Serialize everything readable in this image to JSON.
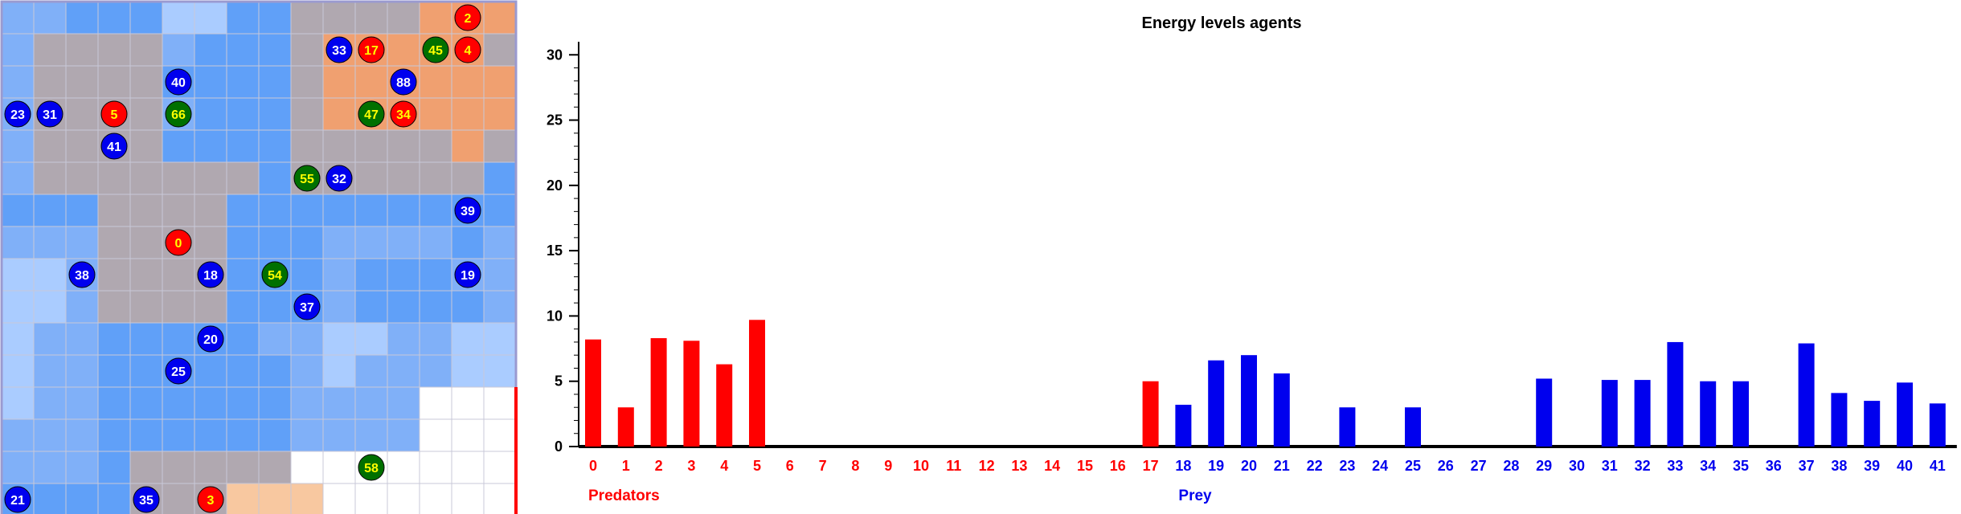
{
  "grid": {
    "rows": 16,
    "cols": 16,
    "colors": {
      "w": "#ffffff",
      "l": "#aaccff",
      "m": "#80b0f8",
      "b": "#60a0f8",
      "g": "#b0a8b0",
      "o": "#f0a070",
      "p": "#f8c8a0"
    },
    "cells": [
      "mmbbbllbbggggooo",
      "mggggmbbbgooooog",
      "mggggbbbbgoooooo",
      "mggggmbbbgoooooo",
      "mggggbbbbgggggog",
      "mgggggggbggggggb",
      "bbbggggbbbbbbbbb",
      "mmmggggbbbmmmmbm",
      "llmggggbbbmbbbmm",
      "llmggggbbbmbbbbm",
      "lmmbbbbbmmllmmll",
      "lmmbbbbbbmlmmmll",
      "lmmbbbbbbmmmmwww",
      "mmmbbbbbbmmmmwww",
      "mmmbgggggwwwwwww",
      "bbbbgggpppwwwwww"
    ],
    "highlight_color": "#ff0000",
    "agents": [
      {
        "id": "2",
        "type": "predator",
        "col": 14,
        "row": 0
      },
      {
        "id": "33",
        "type": "prey",
        "col": 10,
        "row": 1
      },
      {
        "id": "17",
        "type": "predator",
        "col": 11,
        "row": 1
      },
      {
        "id": "45",
        "type": "other",
        "col": 13,
        "row": 1
      },
      {
        "id": "4",
        "type": "predator",
        "col": 14,
        "row": 1
      },
      {
        "id": "40",
        "type": "prey",
        "col": 5,
        "row": 2
      },
      {
        "id": "88",
        "type": "prey",
        "col": 12,
        "row": 2
      },
      {
        "id": "23",
        "type": "prey",
        "col": 0,
        "row": 3
      },
      {
        "id": "31",
        "type": "prey",
        "col": 1,
        "row": 3
      },
      {
        "id": "5",
        "type": "predator",
        "col": 3,
        "row": 3
      },
      {
        "id": "66",
        "type": "other",
        "col": 5,
        "row": 3
      },
      {
        "id": "47",
        "type": "other",
        "col": 11,
        "row": 3
      },
      {
        "id": "34",
        "type": "predator",
        "col": 12,
        "row": 3
      },
      {
        "id": "41",
        "type": "prey",
        "col": 3,
        "row": 4
      },
      {
        "id": "55",
        "type": "other",
        "col": 9,
        "row": 5
      },
      {
        "id": "32",
        "type": "prey",
        "col": 10,
        "row": 5
      },
      {
        "id": "39",
        "type": "prey",
        "col": 14,
        "row": 6
      },
      {
        "id": "0",
        "type": "predator",
        "col": 5,
        "row": 7
      },
      {
        "id": "38",
        "type": "prey",
        "col": 2,
        "row": 8
      },
      {
        "id": "18",
        "type": "prey",
        "col": 6,
        "row": 8
      },
      {
        "id": "54",
        "type": "other",
        "col": 8,
        "row": 8
      },
      {
        "id": "19",
        "type": "prey",
        "col": 14,
        "row": 8
      },
      {
        "id": "37",
        "type": "prey",
        "col": 9,
        "row": 9
      },
      {
        "id": "20",
        "type": "prey",
        "col": 6,
        "row": 10
      },
      {
        "id": "25",
        "type": "prey",
        "col": 5,
        "row": 11
      },
      {
        "id": "58",
        "type": "other",
        "col": 11,
        "row": 14
      },
      {
        "id": "21",
        "type": "prey",
        "col": 0,
        "row": 15
      },
      {
        "id": "35",
        "type": "prey",
        "col": 4,
        "row": 15
      },
      {
        "id": "3",
        "type": "predator",
        "col": 6,
        "row": 15
      }
    ],
    "agent_colors": {
      "predator": "#ff0000",
      "prey": "#0000ee",
      "other": "#007000",
      "predator_text": "#ffff00",
      "prey_text": "#ffffff",
      "other_text": "#ffff00"
    }
  },
  "chart_data": {
    "type": "bar",
    "title": "Energy levels agents",
    "xlabel": "",
    "ylabel": "",
    "ylim": [
      0,
      31
    ],
    "yticks": [
      0,
      5,
      10,
      15,
      20,
      25,
      30
    ],
    "categories": [
      "0",
      "1",
      "2",
      "3",
      "4",
      "5",
      "6",
      "7",
      "8",
      "9",
      "10",
      "11",
      "12",
      "13",
      "14",
      "15",
      "16",
      "17",
      "18",
      "19",
      "20",
      "21",
      "22",
      "23",
      "24",
      "25",
      "26",
      "27",
      "28",
      "29",
      "30",
      "31",
      "32",
      "33",
      "34",
      "35",
      "36",
      "37",
      "38",
      "39",
      "40",
      "41"
    ],
    "values": [
      8.2,
      3.0,
      8.3,
      8.1,
      6.3,
      9.7,
      0,
      0,
      0,
      0,
      0,
      0,
      0,
      0,
      0,
      0,
      0,
      5.0,
      3.2,
      6.6,
      7.0,
      5.6,
      0,
      3.0,
      0,
      3.0,
      0,
      0,
      0,
      5.2,
      0,
      5.1,
      5.1,
      8.0,
      5.0,
      5.0,
      0,
      7.9,
      4.1,
      3.5,
      4.9,
      3.3
    ],
    "groups": [
      {
        "name": "Predators",
        "from": 0,
        "to": 17,
        "color": "#ff0000"
      },
      {
        "name": "Prey",
        "from": 18,
        "to": 41,
        "color": "#0000ee"
      }
    ],
    "legend": "none",
    "grid": false
  }
}
